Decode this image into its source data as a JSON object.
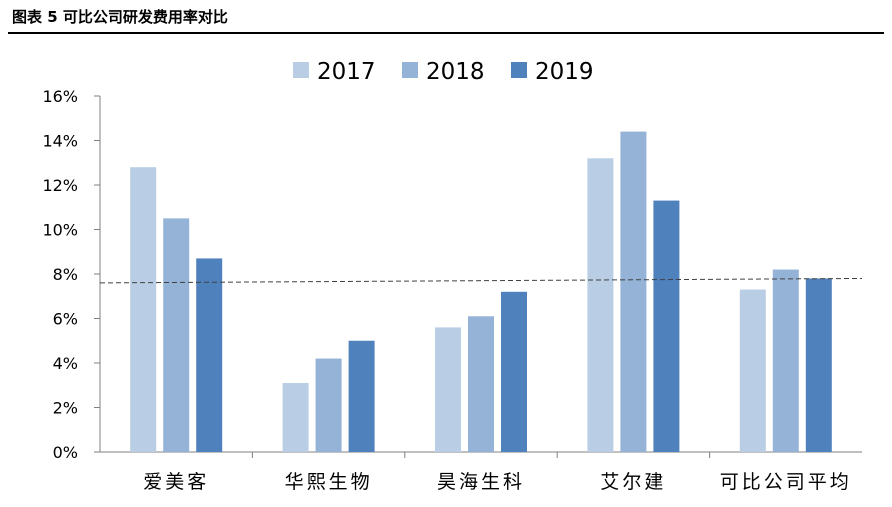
{
  "figure": {
    "title": "图表 5 可比公司研发费用率对比"
  },
  "chart_data": {
    "type": "bar",
    "categories": [
      "爱美客",
      "华熙生物",
      "昊海生科",
      "艾尔建",
      "可比公司平均"
    ],
    "series": [
      {
        "name": "2017",
        "color": "#b9cde5",
        "values": [
          12.8,
          3.1,
          5.6,
          13.2,
          7.3
        ]
      },
      {
        "name": "2018",
        "color": "#95b3d7",
        "values": [
          10.5,
          4.2,
          6.1,
          14.4,
          8.2
        ]
      },
      {
        "name": "2019",
        "color": "#4f81bd",
        "values": [
          8.7,
          5.0,
          7.2,
          11.3,
          7.8
        ]
      }
    ],
    "y_ticks": [
      "0%",
      "2%",
      "4%",
      "6%",
      "8%",
      "10%",
      "12%",
      "14%",
      "16%"
    ],
    "ylim": [
      0,
      16
    ],
    "y_unit": "%",
    "reference_line": {
      "style": "dashed",
      "y_start": 7.6,
      "y_end": 7.8
    },
    "legend_position": "top-center",
    "grid": false
  }
}
